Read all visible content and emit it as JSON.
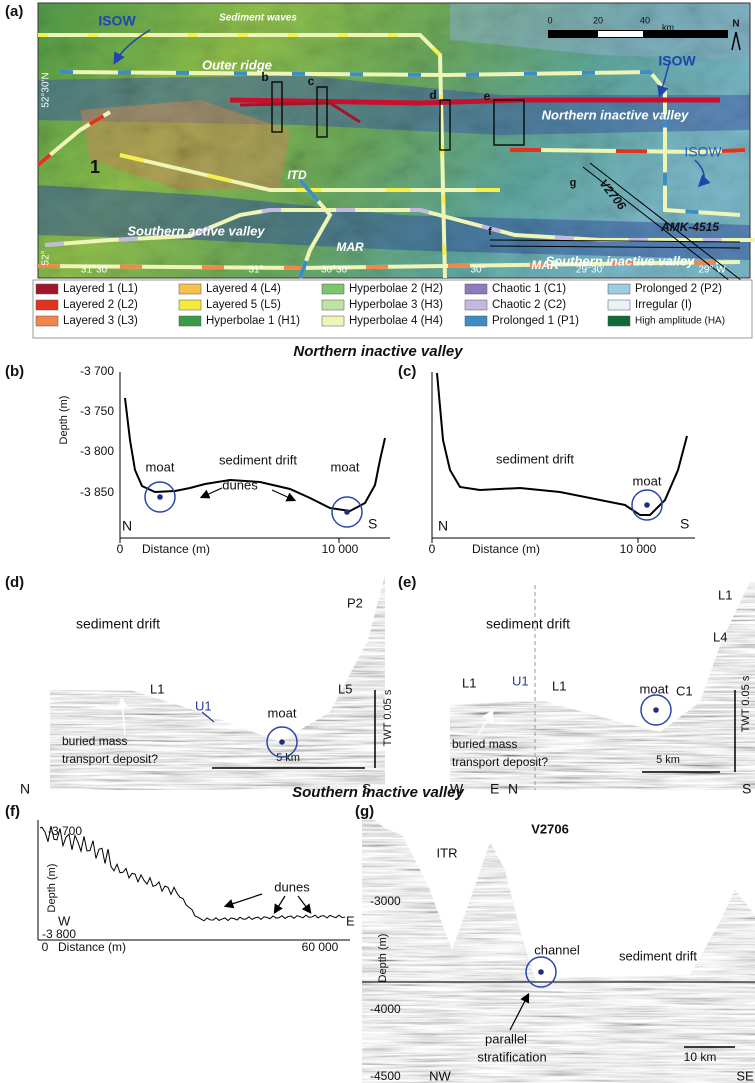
{
  "panel_a": {
    "label": "(a)",
    "map_texts": [
      "ISOW",
      "Sediment waves",
      "Outer ridge",
      "ISOW",
      "ISOW",
      "Northern inactive valley",
      "ITD",
      "Southern active valley",
      "MAR",
      "MAR",
      "Southern inactive valley",
      "V2706",
      "AMK-4515",
      "1",
      "b",
      "c",
      "d",
      "e",
      "f",
      "g",
      "52°30'N",
      "52°",
      "31°30'",
      "31°",
      "30°30'",
      "30°",
      "29°30'",
      "29° W"
    ],
    "scale_texts": [
      "0",
      "20",
      "40",
      "km"
    ],
    "north": "N",
    "legend": [
      {
        "name": "Layered 1 (L1)",
        "color": "#a3162a"
      },
      {
        "name": "Layered 2 (L2)",
        "color": "#e0341f"
      },
      {
        "name": "Layered 3 (L3)",
        "color": "#f2874a"
      },
      {
        "name": "Layered 4 (L4)",
        "color": "#f7c14a"
      },
      {
        "name": "Layered 5 (L5)",
        "color": "#f4ea3c"
      },
      {
        "name": "Hyperbolae 1 (H1)",
        "color": "#3a9b47"
      },
      {
        "name": "Hyperbolae 2 (H2)",
        "color": "#7cc46e"
      },
      {
        "name": "Hyperbolae 3 (H3)",
        "color": "#bfe3a5"
      },
      {
        "name": "Hyperbolae 4 (H4)",
        "color": "#eef5b5"
      },
      {
        "name": "Chaotic 1 (C1)",
        "color": "#8d7bbd"
      },
      {
        "name": "Chaotic 2 (C2)",
        "color": "#c3b8dd"
      },
      {
        "name": "Prolonged 1 (P1)",
        "color": "#3d8cc4"
      },
      {
        "name": "Prolonged 2 (P2)",
        "color": "#9dcde0"
      },
      {
        "name": "Irregular (I)",
        "color": "#e8f3f8"
      },
      {
        "name": "High amplitude (HA)",
        "color": "#0f6b35"
      }
    ]
  },
  "north_title": "Northern inactive valley",
  "panel_b": {
    "label": "(b)",
    "texts": [
      "-3 700",
      "-3 750",
      "-3 800",
      "-3 850",
      "Depth (m)",
      "0",
      "Distance (m)",
      "10 000",
      "N",
      "S",
      "moat",
      "sediment drift",
      "dunes",
      "moat"
    ]
  },
  "panel_c": {
    "label": "(c)",
    "texts": [
      "sediment drift",
      "moat",
      "N",
      "S",
      "0",
      "Distance (m)",
      "10 000"
    ]
  },
  "panel_d": {
    "label": "(d)",
    "texts": [
      "sediment drift",
      "L1",
      "U1",
      "moat",
      "L5",
      "P2",
      "buried mass",
      "transport deposit?",
      "TWT 0.05 s",
      "5 km",
      "N",
      "S"
    ]
  },
  "panel_e": {
    "label": "(e)",
    "texts": [
      "sediment drift",
      "L1",
      "U1",
      "L1",
      "moat",
      "C1",
      "L4",
      "L1",
      "buried mass",
      "transport deposit?",
      "TWT 0.05 s",
      "5 km",
      "W",
      "E",
      "N",
      "S"
    ]
  },
  "south_title": "Southern inactive valley",
  "panel_f": {
    "label": "(f)",
    "texts": [
      "-3 700",
      "-3 800",
      "Depth (m)",
      "W",
      "E",
      "0",
      "Distance (m)",
      "60 000",
      "dunes"
    ]
  },
  "panel_g": {
    "label": "(g)",
    "texts": [
      "V2706",
      "ITR",
      "-3000",
      "Depth (m)",
      "-4000",
      "-4500",
      "channel",
      "sediment drift",
      "parallel",
      "stratification",
      "10 km",
      "NW",
      "SE"
    ]
  }
}
